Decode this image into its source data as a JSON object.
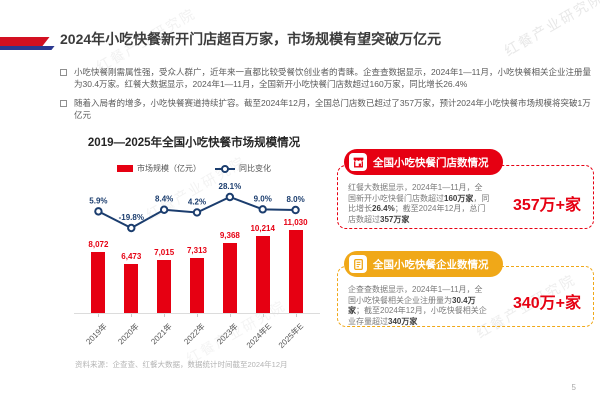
{
  "page": {
    "title": "2024年小吃快餐新开门店超百万家，市场规模有望突破万亿元",
    "watermark": "红餐产业研究院",
    "source_note": "资料来源：企查查、红餐大数据，数据统计时间截至2024年12月",
    "page_number": "5"
  },
  "colors": {
    "brand_red": "#e60012",
    "accent_gold": "#f0a818",
    "line_navy": "#1b3d6e"
  },
  "bullets": [
    "小吃快餐刚需属性强，受众人群广，近年来一直都比较受餐饮创业者的青睐。企查查数据显示，2024年1—11月，小吃快餐相关企业注册量为30.4万家。红餐大数据显示，2024年1—11月，全国新开小吃快餐门店数超过160万家，同比增长26.4%",
    "随着入局者的增多，小吃快餐赛道持续扩容。截至2024年12月，全国总门店数已超过了357万家，预计2024年小吃快餐市场规模将突破1万亿元"
  ],
  "chart_data": {
    "type": "bar",
    "title": "2019—2025年全国小吃快餐市场规模情况",
    "categories": [
      "2019年",
      "2020年",
      "2021年",
      "2022年",
      "2023年",
      "2024年E",
      "2025年E"
    ],
    "series": [
      {
        "name": "市场规模（亿元）",
        "type": "bar",
        "color": "#e60012",
        "values": [
          8072,
          6473,
          7015,
          7313,
          9368,
          10214,
          11030
        ]
      },
      {
        "name": "同比变化",
        "type": "line",
        "color": "#1b3d6e",
        "unit": "%",
        "values": [
          5.9,
          -19.8,
          8.4,
          4.2,
          28.1,
          9.0,
          8.0
        ]
      }
    ],
    "bar_labels": [
      "8,072",
      "6,473",
      "7,015",
      "7,313",
      "9,368",
      "10,214",
      "11,030"
    ],
    "line_labels": [
      "5.9%",
      "-19.8%",
      "8.4%",
      "4.2%",
      "28.1%",
      "9.0%",
      "8.0%"
    ],
    "legend_position": "top",
    "grid": false
  },
  "cards": [
    {
      "header": "全国小吃快餐门店数情况",
      "icon": "storefront-icon",
      "accent": "#e60012",
      "highlight": "357万+家",
      "body_segments": [
        {
          "text": "红餐大数据显示，2024年1—11月，全国新开小吃快餐门店数超过",
          "bold": false
        },
        {
          "text": "160万家",
          "bold": true
        },
        {
          "text": "，同比增长",
          "bold": false
        },
        {
          "text": "26.4%",
          "bold": true
        },
        {
          "text": "；截至2024年12月，总门店数超过",
          "bold": false
        },
        {
          "text": "357万家",
          "bold": true
        }
      ]
    },
    {
      "header": "全国小吃快餐企业数情况",
      "icon": "document-icon",
      "accent": "#f0a818",
      "highlight": "340万+家",
      "body_segments": [
        {
          "text": "企查查数据显示，2024年1—11月，全国小吃快餐相关企业注册量为",
          "bold": false
        },
        {
          "text": "30.4万家",
          "bold": true
        },
        {
          "text": "；截至2024年12月，小吃快餐相关企业存量超过",
          "bold": false
        },
        {
          "text": "340万家",
          "bold": true
        }
      ]
    }
  ]
}
